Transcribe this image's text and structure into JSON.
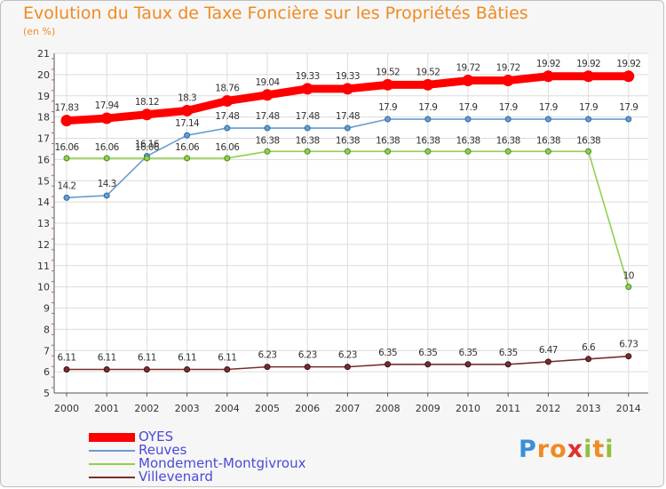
{
  "chart_data": {
    "type": "line",
    "title": "Evolution du Taux de Taxe Foncière sur les Propriétés Bâties",
    "subtitle": "(en %)",
    "x": [
      "2000",
      "2001",
      "2002",
      "2003",
      "2004",
      "2005",
      "2006",
      "2007",
      "2008",
      "2009",
      "2010",
      "2011",
      "2012",
      "2013",
      "2014"
    ],
    "ylim": [
      5,
      21
    ],
    "yticks": [
      5,
      6,
      7,
      8,
      9,
      10,
      11,
      12,
      13,
      14,
      15,
      16,
      17,
      18,
      19,
      20,
      21
    ],
    "grid": true,
    "legend_position": "bottom-left",
    "series": [
      {
        "name": "OYES",
        "color": "#ff0000",
        "values": [
          17.83,
          17.94,
          18.12,
          18.3,
          18.76,
          19.04,
          19.33,
          19.33,
          19.52,
          19.52,
          19.72,
          19.72,
          19.92,
          19.92,
          19.92
        ],
        "labels": [
          "17.83",
          "17.94",
          "18.12",
          "18.3",
          "18.76",
          "19.04",
          "19.33",
          "19.33",
          "19.52",
          "19.52",
          "19.72",
          "19.72",
          "19.92",
          "19.92",
          "19.92"
        ]
      },
      {
        "name": "Reuves",
        "color": "#6a9ccc",
        "values": [
          14.2,
          14.3,
          16.16,
          17.14,
          17.48,
          17.48,
          17.48,
          17.48,
          17.9,
          17.9,
          17.9,
          17.9,
          17.9,
          17.9,
          17.9
        ],
        "labels": [
          "14.2",
          "14.3",
          "16.16",
          "17.14",
          "17.48",
          "17.48",
          "17.48",
          "17.48",
          "17.9",
          "17.9",
          "17.9",
          "17.9",
          "17.9",
          "17.9",
          "17.9"
        ]
      },
      {
        "name": "Mondement-Montgivroux",
        "color": "#90d050",
        "values": [
          16.06,
          16.06,
          16.06,
          16.06,
          16.06,
          16.38,
          16.38,
          16.38,
          16.38,
          16.38,
          16.38,
          16.38,
          16.38,
          16.38,
          10
        ],
        "labels": [
          "16.06",
          "16.06",
          "16.06",
          "16.06",
          "16.06",
          "16.38",
          "16.38",
          "16.38",
          "16.38",
          "16.38",
          "16.38",
          "16.38",
          "16.38",
          "16.38",
          "10"
        ]
      },
      {
        "name": "Villevenard",
        "color": "#7a2e2e",
        "values": [
          6.11,
          6.11,
          6.11,
          6.11,
          6.11,
          6.23,
          6.23,
          6.23,
          6.35,
          6.35,
          6.35,
          6.35,
          6.47,
          6.6,
          6.73
        ],
        "labels": [
          "6.11",
          "6.11",
          "6.11",
          "6.11",
          "6.11",
          "6.23",
          "6.23",
          "6.23",
          "6.35",
          "6.35",
          "6.35",
          "6.35",
          "6.47",
          "6.6",
          "6.73"
        ]
      }
    ]
  },
  "logo": {
    "letters": [
      "P",
      "r",
      "o",
      "x",
      "i",
      "t",
      "i"
    ],
    "colors": [
      "#3a8fd8",
      "#f08a22",
      "#f08a22",
      "#e03030",
      "#90c040",
      "#f08a22",
      "#90c040"
    ]
  }
}
